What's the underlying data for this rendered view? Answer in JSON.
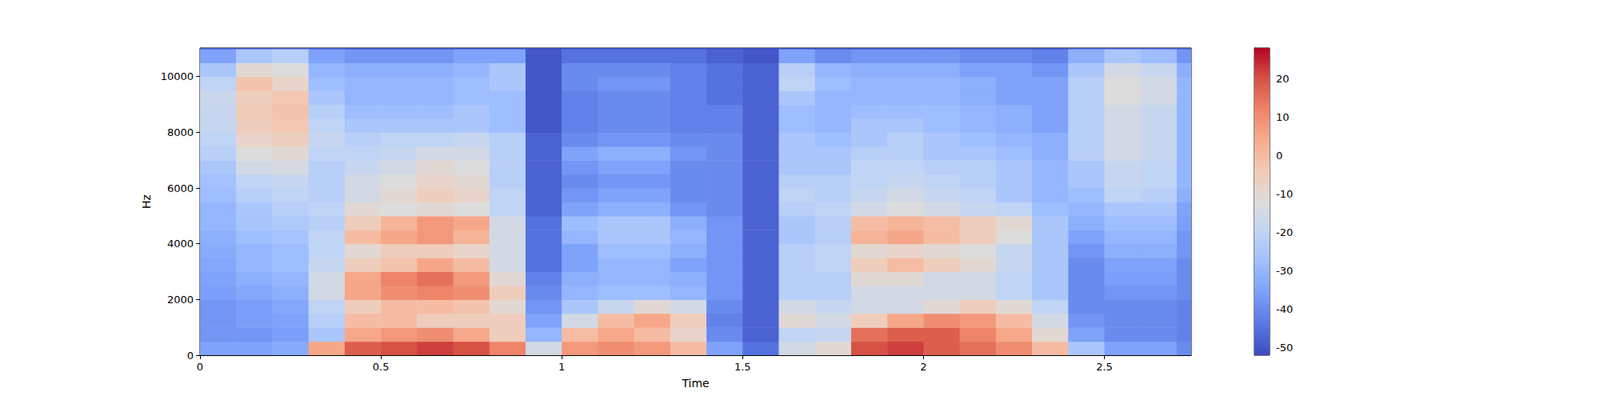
{
  "chart_data": {
    "type": "heatmap",
    "x_label": "Time",
    "y_label": "Hz",
    "color": "coolwarm",
    "grid": false,
    "xlim": [
      0,
      2.74
    ],
    "ylim": [
      0,
      11025
    ],
    "xticks": [
      0,
      0.5,
      1,
      1.5,
      2,
      2.5
    ],
    "yticks": [
      0,
      2000,
      4000,
      6000,
      8000,
      10000
    ],
    "x_edges": [
      0,
      0.1,
      0.2,
      0.3,
      0.4,
      0.5,
      0.6,
      0.7,
      0.8,
      0.9,
      1.0,
      1.1,
      1.2,
      1.3,
      1.4,
      1.5,
      1.6,
      1.7,
      1.8,
      1.9,
      2.0,
      2.1,
      2.2,
      2.3,
      2.4,
      2.5,
      2.6,
      2.7,
      2.74
    ],
    "y_edges": [
      0,
      500,
      1000,
      1500,
      2000,
      2500,
      3000,
      3500,
      4000,
      4500,
      5000,
      5500,
      6000,
      6500,
      7000,
      7500,
      8000,
      8500,
      9000,
      9500,
      10000,
      10500,
      11000,
      11025
    ],
    "cells": [
      [
        -35,
        -38,
        -38,
        -38,
        -36,
        -35,
        -34,
        -33,
        -32,
        -30,
        -30,
        -28,
        -27,
        -25,
        -22,
        -20,
        -18,
        -18,
        -17,
        -20,
        -25,
        -35,
        -50
      ],
      [
        -35,
        -38,
        -36,
        -36,
        -34,
        -32,
        -30,
        -30,
        -28,
        -26,
        -25,
        -22,
        -20,
        -15,
        -12,
        -8,
        -5,
        -4,
        -6,
        -2,
        -10,
        -25,
        -50
      ],
      [
        -33,
        -36,
        -35,
        -34,
        -32,
        -30,
        -28,
        -28,
        -26,
        -24,
        -22,
        -20,
        -18,
        -14,
        -10,
        -6,
        -3,
        -2,
        -3,
        -8,
        -12,
        -22,
        -50
      ],
      [
        5,
        -25,
        -22,
        -20,
        -15,
        -15,
        -18,
        -20,
        -20,
        -22,
        -20,
        -22,
        -22,
        -22,
        -20,
        -18,
        -20,
        -22,
        -25,
        -28,
        -30,
        -35,
        -50
      ],
      [
        18,
        5,
        0,
        -5,
        5,
        5,
        -5,
        -10,
        0,
        -5,
        -10,
        -15,
        -15,
        -18,
        -20,
        -22,
        -25,
        -28,
        -30,
        -30,
        -32,
        -38,
        -52
      ],
      [
        20,
        8,
        0,
        0,
        10,
        12,
        -2,
        -5,
        5,
        2,
        -12,
        -10,
        -12,
        -15,
        -18,
        -20,
        -25,
        -28,
        -30,
        -30,
        -32,
        -38,
        -52
      ],
      [
        22,
        10,
        -5,
        0,
        12,
        15,
        5,
        -5,
        8,
        8,
        -10,
        -5,
        -8,
        -10,
        -15,
        -20,
        -25,
        -28,
        -30,
        -30,
        -32,
        -38,
        -52
      ],
      [
        20,
        5,
        -5,
        -2,
        10,
        8,
        0,
        -8,
        2,
        5,
        -12,
        -8,
        -10,
        -12,
        -15,
        -18,
        -25,
        -25,
        -28,
        -28,
        -30,
        -35,
        -52
      ],
      [
        12,
        -5,
        -5,
        -10,
        -5,
        -10,
        -15,
        -15,
        -15,
        -15,
        -20,
        -20,
        -22,
        -22,
        -22,
        -22,
        -28,
        -28,
        -28,
        -25,
        -25,
        -35,
        -52
      ],
      [
        -15,
        -30,
        -35,
        -38,
        -40,
        -42,
        -45,
        -45,
        -45,
        -45,
        -48,
        -48,
        -48,
        -48,
        -48,
        -48,
        -50,
        -50,
        -50,
        -50,
        -50,
        -50,
        -52
      ],
      [
        8,
        0,
        -15,
        -25,
        -30,
        -32,
        -35,
        -35,
        -30,
        -28,
        -35,
        -38,
        -40,
        -38,
        -35,
        -40,
        -42,
        -42,
        -42,
        -40,
        -40,
        -45,
        -52
      ],
      [
        10,
        5,
        0,
        -18,
        -28,
        -30,
        -30,
        -28,
        -25,
        -25,
        -32,
        -35,
        -38,
        -35,
        -32,
        -38,
        -40,
        -40,
        -40,
        -38,
        -40,
        -45,
        -52
      ],
      [
        8,
        0,
        5,
        -10,
        -28,
        -30,
        -30,
        -28,
        -25,
        -25,
        -32,
        -35,
        -38,
        -35,
        -32,
        -38,
        -40,
        -40,
        -40,
        -38,
        -40,
        -45,
        -52
      ],
      [
        0,
        -8,
        -5,
        -15,
        -30,
        -32,
        -35,
        -32,
        -30,
        -32,
        -38,
        -40,
        -40,
        -40,
        -38,
        -40,
        -42,
        -42,
        -42,
        -42,
        -42,
        -45,
        -52
      ],
      [
        -35,
        -40,
        -42,
        -40,
        -38,
        -38,
        -38,
        -38,
        -38,
        -38,
        -40,
        -40,
        -40,
        -40,
        -40,
        -40,
        -42,
        -42,
        -45,
        -45,
        -45,
        -48,
        -52
      ],
      [
        -45,
        -48,
        -48,
        -48,
        -48,
        -48,
        -48,
        -48,
        -48,
        -48,
        -48,
        -48,
        -48,
        -48,
        -48,
        -48,
        -48,
        -48,
        -48,
        -48,
        -48,
        -50,
        -52
      ],
      [
        -15,
        -20,
        -10,
        -15,
        -22,
        -22,
        -22,
        -22,
        -25,
        -25,
        -22,
        -20,
        -22,
        -25,
        -25,
        -25,
        -28,
        -28,
        -25,
        -20,
        -22,
        -35,
        -52
      ],
      [
        -10,
        -18,
        -15,
        -18,
        -22,
        -22,
        -20,
        -20,
        -22,
        -22,
        -20,
        -22,
        -22,
        -25,
        -25,
        -28,
        -30,
        -30,
        -30,
        -28,
        -30,
        -40,
        -52
      ],
      [
        20,
        15,
        -5,
        -15,
        -15,
        -10,
        -5,
        -10,
        2,
        0,
        -15,
        -18,
        -20,
        -20,
        -22,
        -25,
        -25,
        -28,
        -30,
        -30,
        -32,
        -38,
        -52
      ],
      [
        22,
        18,
        5,
        -15,
        -15,
        -10,
        0,
        -8,
        5,
        2,
        -12,
        -15,
        -18,
        -20,
        -22,
        -22,
        -25,
        -28,
        -30,
        -30,
        -32,
        -38,
        -52
      ],
      [
        18,
        18,
        10,
        -10,
        -15,
        -15,
        -5,
        -10,
        0,
        0,
        -15,
        -18,
        -20,
        -22,
        -25,
        -25,
        -28,
        -28,
        -30,
        -30,
        -32,
        -38,
        -52
      ],
      [
        15,
        12,
        8,
        -5,
        -15,
        -15,
        -10,
        -12,
        -5,
        -5,
        -18,
        -20,
        -22,
        -22,
        -25,
        -28,
        -30,
        -30,
        -32,
        -32,
        -35,
        -40,
        -52
      ],
      [
        10,
        5,
        0,
        -10,
        -20,
        -20,
        -18,
        -18,
        -12,
        -10,
        -20,
        -25,
        -25,
        -25,
        -28,
        -30,
        -32,
        -32,
        -35,
        -35,
        -35,
        -40,
        -52
      ],
      [
        0,
        -10,
        -15,
        -20,
        -25,
        -25,
        -25,
        -25,
        -25,
        -25,
        -28,
        -30,
        -30,
        -30,
        -32,
        -32,
        -35,
        -35,
        -35,
        -35,
        -38,
        -42,
        -52
      ],
      [
        -25,
        -35,
        -38,
        -40,
        -40,
        -40,
        -40,
        -38,
        -35,
        -32,
        -30,
        -28,
        -25,
        -25,
        -22,
        -22,
        -22,
        -22,
        -22,
        -22,
        -25,
        -32,
        -50
      ],
      [
        -35,
        -40,
        -40,
        -40,
        -38,
        -36,
        -35,
        -32,
        -30,
        -28,
        -25,
        -20,
        -18,
        -18,
        -15,
        -15,
        -15,
        -15,
        -12,
        -12,
        -15,
        -25,
        -50
      ],
      [
        -35,
        -40,
        -40,
        -40,
        -38,
        -36,
        -35,
        -32,
        -30,
        -28,
        -25,
        -22,
        -20,
        -20,
        -18,
        -18,
        -18,
        -18,
        -15,
        -15,
        -18,
        -28,
        -50
      ],
      [
        -40,
        -42,
        -42,
        -42,
        -40,
        -40,
        -40,
        -38,
        -38,
        -36,
        -35,
        -32,
        -30,
        -30,
        -30,
        -30,
        -30,
        -30,
        -30,
        -30,
        -32,
        -38,
        -50
      ]
    ],
    "colorbar": {
      "range": [
        -52,
        28
      ],
      "ticks": [
        -50,
        -40,
        -30,
        -20,
        -10,
        0,
        10,
        20
      ]
    }
  }
}
